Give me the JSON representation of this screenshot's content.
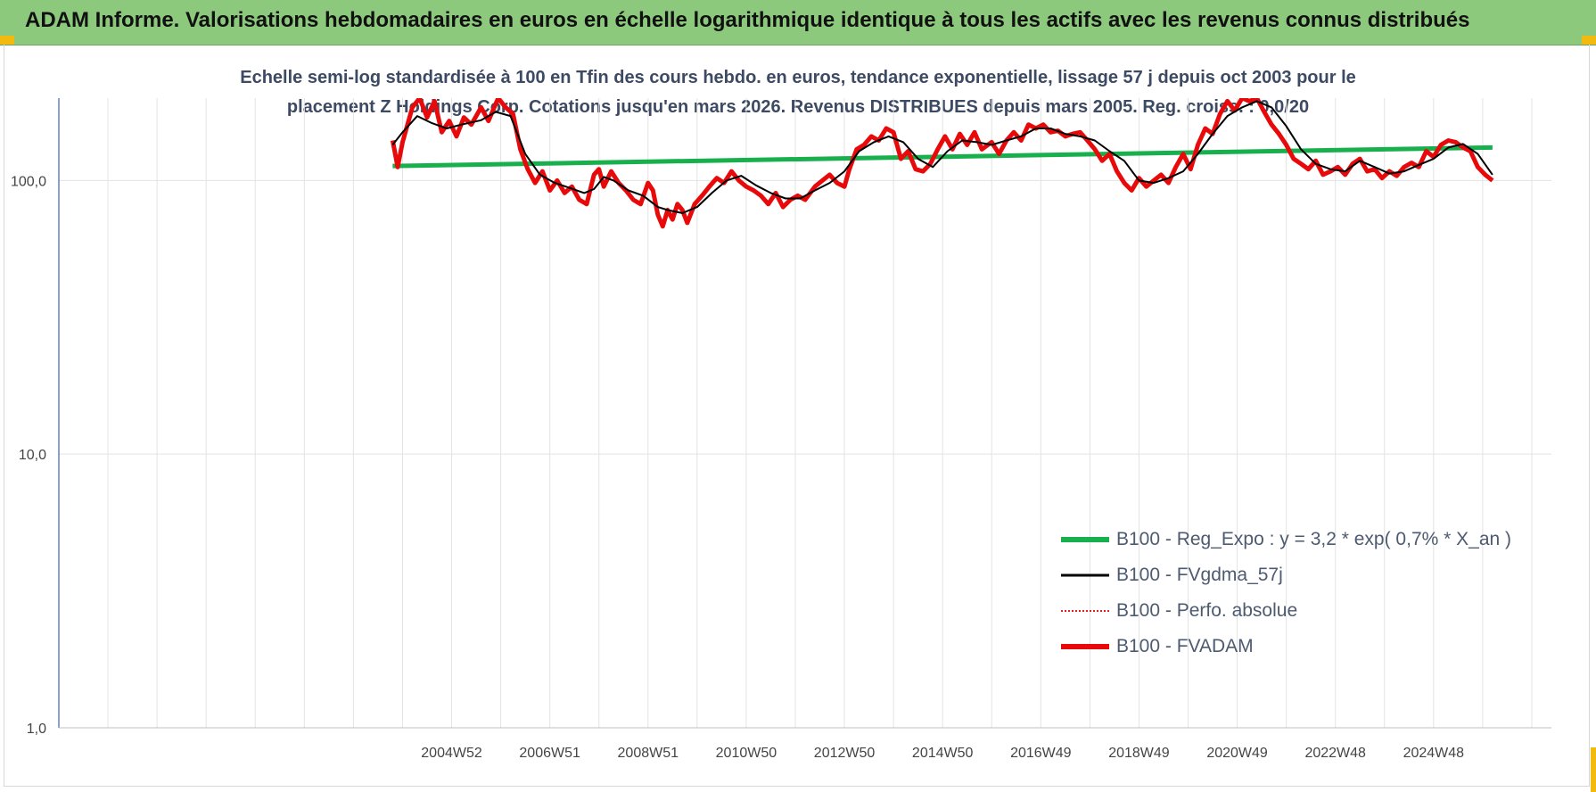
{
  "header": {
    "title": "ADAM Informe. Valorisations hebdomadaires en euros en échelle logarithmique identique à tous les actifs avec les revenus connus distribués"
  },
  "colors": {
    "header_bg": "#8cc97c",
    "corner_accent": "#f2b90f",
    "reg_expo": "#18b04c",
    "fvgdma": "#000000",
    "perfo": "#e02020",
    "fvadam": "#e80a0a",
    "grid": "#e3e3e3",
    "axis": "#3c64b4"
  },
  "chart_data": {
    "type": "line",
    "title_lines": [
      "Echelle semi-log standardisée à 100 en Tfin des cours hebdo. en euros, tendance exponentielle, lissage 57 j depuis oct 2003 pour le",
      "placement Z Holdings Corp. Cotations jusqu'en mars 2026. Revenus DISTRIBUES depuis mars 2005. Reg. croiss. : 0,0/20"
    ],
    "y_scale": "log",
    "ylim": [
      1,
      200
    ],
    "y_ticks": [
      1,
      10,
      100
    ],
    "y_tick_labels": [
      "1,0",
      "10,0",
      "100,0"
    ],
    "xlim": [
      1997.0,
      2027.4
    ],
    "x_tick_values": [
      2005.0,
      2007.0,
      2009.0,
      2011.0,
      2013.0,
      2015.0,
      2017.0,
      2019.0,
      2021.0,
      2023.0,
      2025.0
    ],
    "x_tick_labels": [
      "2004W52",
      "2006W51",
      "2008W51",
      "2010W50",
      "2012W50",
      "2014W50",
      "2016W49",
      "2018W49",
      "2020W49",
      "2022W48",
      "2024W48"
    ],
    "vertical_grid_years": [
      1998,
      1999,
      2000,
      2001,
      2002,
      2003,
      2004,
      2005,
      2006,
      2007,
      2008,
      2009,
      2010,
      2011,
      2012,
      2013,
      2014,
      2015,
      2016,
      2017,
      2018,
      2019,
      2020,
      2021,
      2022,
      2023,
      2024,
      2025,
      2026,
      2027
    ],
    "grid": true,
    "legend_position": "bottom-right",
    "series": [
      {
        "name": "B100 - Reg_Expo : y = 3,2 * exp( 0,7% *  X_an )",
        "color": "#18b04c",
        "style": "thick",
        "points": [
          [
            2003.8,
            113
          ],
          [
            2026.2,
            132
          ]
        ]
      },
      {
        "name": "B100 - FVgdma_57j",
        "color": "#000000",
        "style": "thin",
        "points": [
          [
            2003.8,
            135
          ],
          [
            2004.0,
            150
          ],
          [
            2004.3,
            172
          ],
          [
            2004.6,
            162
          ],
          [
            2004.9,
            155
          ],
          [
            2005.2,
            160
          ],
          [
            2005.6,
            166
          ],
          [
            2005.9,
            178
          ],
          [
            2006.2,
            172
          ],
          [
            2006.5,
            125
          ],
          [
            2006.8,
            105
          ],
          [
            2007.1,
            98
          ],
          [
            2007.4,
            94
          ],
          [
            2007.7,
            90
          ],
          [
            2007.9,
            93
          ],
          [
            2008.1,
            103
          ],
          [
            2008.3,
            100
          ],
          [
            2008.6,
            92
          ],
          [
            2008.9,
            88
          ],
          [
            2009.2,
            80
          ],
          [
            2009.4,
            78
          ],
          [
            2009.7,
            76
          ],
          [
            2010.0,
            80
          ],
          [
            2010.3,
            90
          ],
          [
            2010.6,
            100
          ],
          [
            2010.9,
            104
          ],
          [
            2011.2,
            96
          ],
          [
            2011.5,
            90
          ],
          [
            2011.8,
            86
          ],
          [
            2012.1,
            86
          ],
          [
            2012.4,
            92
          ],
          [
            2012.7,
            98
          ],
          [
            2013.0,
            108
          ],
          [
            2013.3,
            128
          ],
          [
            2013.6,
            138
          ],
          [
            2013.9,
            145
          ],
          [
            2014.2,
            138
          ],
          [
            2014.5,
            120
          ],
          [
            2014.8,
            112
          ],
          [
            2015.1,
            128
          ],
          [
            2015.4,
            140
          ],
          [
            2015.7,
            138
          ],
          [
            2016.0,
            135
          ],
          [
            2016.3,
            140
          ],
          [
            2016.6,
            145
          ],
          [
            2016.9,
            155
          ],
          [
            2017.2,
            155
          ],
          [
            2017.5,
            148
          ],
          [
            2017.8,
            145
          ],
          [
            2018.1,
            140
          ],
          [
            2018.4,
            128
          ],
          [
            2018.7,
            118
          ],
          [
            2019.0,
            100
          ],
          [
            2019.3,
            98
          ],
          [
            2019.6,
            102
          ],
          [
            2019.9,
            108
          ],
          [
            2020.2,
            125
          ],
          [
            2020.5,
            148
          ],
          [
            2020.8,
            172
          ],
          [
            2021.1,
            185
          ],
          [
            2021.4,
            195
          ],
          [
            2021.7,
            185
          ],
          [
            2022.0,
            158
          ],
          [
            2022.3,
            130
          ],
          [
            2022.6,
            115
          ],
          [
            2022.9,
            110
          ],
          [
            2023.2,
            108
          ],
          [
            2023.5,
            118
          ],
          [
            2023.8,
            112
          ],
          [
            2024.1,
            106
          ],
          [
            2024.4,
            108
          ],
          [
            2024.7,
            114
          ],
          [
            2025.0,
            120
          ],
          [
            2025.3,
            132
          ],
          [
            2025.6,
            136
          ],
          [
            2025.9,
            125
          ],
          [
            2026.2,
            105
          ]
        ]
      },
      {
        "name": "B100 - Perfo. absolue",
        "color": "#e02020",
        "style": "dotted",
        "points": []
      },
      {
        "name": "B100 - FVADAM",
        "color": "#e80a0a",
        "style": "thick",
        "points": [
          [
            2003.8,
            140
          ],
          [
            2003.9,
            112
          ],
          [
            2004.0,
            138
          ],
          [
            2004.2,
            185
          ],
          [
            2004.35,
            200
          ],
          [
            2004.5,
            170
          ],
          [
            2004.65,
            195
          ],
          [
            2004.8,
            150
          ],
          [
            2004.95,
            165
          ],
          [
            2005.1,
            145
          ],
          [
            2005.25,
            170
          ],
          [
            2005.4,
            160
          ],
          [
            2005.6,
            185
          ],
          [
            2005.75,
            165
          ],
          [
            2005.95,
            200
          ],
          [
            2006.1,
            185
          ],
          [
            2006.25,
            175
          ],
          [
            2006.4,
            130
          ],
          [
            2006.55,
            110
          ],
          [
            2006.7,
            98
          ],
          [
            2006.85,
            108
          ],
          [
            2007.0,
            92
          ],
          [
            2007.15,
            100
          ],
          [
            2007.3,
            90
          ],
          [
            2007.45,
            95
          ],
          [
            2007.6,
            85
          ],
          [
            2007.75,
            82
          ],
          [
            2007.9,
            105
          ],
          [
            2008.0,
            110
          ],
          [
            2008.1,
            95
          ],
          [
            2008.25,
            108
          ],
          [
            2008.4,
            98
          ],
          [
            2008.55,
            92
          ],
          [
            2008.7,
            85
          ],
          [
            2008.85,
            82
          ],
          [
            2009.0,
            98
          ],
          [
            2009.1,
            92
          ],
          [
            2009.2,
            75
          ],
          [
            2009.3,
            68
          ],
          [
            2009.4,
            78
          ],
          [
            2009.5,
            72
          ],
          [
            2009.6,
            82
          ],
          [
            2009.7,
            78
          ],
          [
            2009.8,
            70
          ],
          [
            2009.95,
            82
          ],
          [
            2010.1,
            88
          ],
          [
            2010.25,
            95
          ],
          [
            2010.4,
            102
          ],
          [
            2010.55,
            98
          ],
          [
            2010.7,
            108
          ],
          [
            2010.85,
            100
          ],
          [
            2011.0,
            95
          ],
          [
            2011.15,
            92
          ],
          [
            2011.3,
            88
          ],
          [
            2011.45,
            82
          ],
          [
            2011.6,
            90
          ],
          [
            2011.75,
            80
          ],
          [
            2011.9,
            85
          ],
          [
            2012.05,
            88
          ],
          [
            2012.2,
            85
          ],
          [
            2012.4,
            95
          ],
          [
            2012.55,
            100
          ],
          [
            2012.7,
            105
          ],
          [
            2012.85,
            98
          ],
          [
            2013.0,
            95
          ],
          [
            2013.1,
            110
          ],
          [
            2013.25,
            130
          ],
          [
            2013.4,
            135
          ],
          [
            2013.55,
            145
          ],
          [
            2013.7,
            140
          ],
          [
            2013.85,
            155
          ],
          [
            2014.0,
            150
          ],
          [
            2014.15,
            120
          ],
          [
            2014.3,
            128
          ],
          [
            2014.45,
            110
          ],
          [
            2014.6,
            108
          ],
          [
            2014.75,
            115
          ],
          [
            2014.9,
            130
          ],
          [
            2015.05,
            145
          ],
          [
            2015.2,
            130
          ],
          [
            2015.35,
            148
          ],
          [
            2015.5,
            135
          ],
          [
            2015.65,
            150
          ],
          [
            2015.8,
            130
          ],
          [
            2016.0,
            138
          ],
          [
            2016.15,
            125
          ],
          [
            2016.3,
            140
          ],
          [
            2016.45,
            150
          ],
          [
            2016.6,
            140
          ],
          [
            2016.75,
            160
          ],
          [
            2016.9,
            155
          ],
          [
            2017.05,
            160
          ],
          [
            2017.2,
            150
          ],
          [
            2017.35,
            152
          ],
          [
            2017.5,
            145
          ],
          [
            2017.65,
            148
          ],
          [
            2017.8,
            150
          ],
          [
            2017.95,
            140
          ],
          [
            2018.1,
            130
          ],
          [
            2018.25,
            118
          ],
          [
            2018.4,
            125
          ],
          [
            2018.55,
            108
          ],
          [
            2018.7,
            98
          ],
          [
            2018.85,
            92
          ],
          [
            2019.0,
            102
          ],
          [
            2019.15,
            95
          ],
          [
            2019.3,
            100
          ],
          [
            2019.45,
            105
          ],
          [
            2019.6,
            98
          ],
          [
            2019.75,
            112
          ],
          [
            2019.9,
            125
          ],
          [
            2020.05,
            110
          ],
          [
            2020.2,
            135
          ],
          [
            2020.35,
            155
          ],
          [
            2020.5,
            148
          ],
          [
            2020.65,
            175
          ],
          [
            2020.8,
            195
          ],
          [
            2020.95,
            180
          ],
          [
            2021.1,
            200
          ],
          [
            2021.25,
            195
          ],
          [
            2021.4,
            200
          ],
          [
            2021.55,
            178
          ],
          [
            2021.7,
            160
          ],
          [
            2021.85,
            148
          ],
          [
            2022.0,
            135
          ],
          [
            2022.15,
            120
          ],
          [
            2022.3,
            115
          ],
          [
            2022.45,
            110
          ],
          [
            2022.6,
            118
          ],
          [
            2022.75,
            105
          ],
          [
            2022.9,
            108
          ],
          [
            2023.05,
            112
          ],
          [
            2023.2,
            105
          ],
          [
            2023.35,
            115
          ],
          [
            2023.5,
            120
          ],
          [
            2023.65,
            108
          ],
          [
            2023.8,
            110
          ],
          [
            2023.95,
            102
          ],
          [
            2024.1,
            108
          ],
          [
            2024.25,
            104
          ],
          [
            2024.4,
            112
          ],
          [
            2024.55,
            116
          ],
          [
            2024.7,
            112
          ],
          [
            2024.85,
            128
          ],
          [
            2025.0,
            122
          ],
          [
            2025.15,
            135
          ],
          [
            2025.3,
            140
          ],
          [
            2025.45,
            138
          ],
          [
            2025.6,
            132
          ],
          [
            2025.75,
            128
          ],
          [
            2025.9,
            112
          ],
          [
            2026.05,
            105
          ],
          [
            2026.2,
            100
          ]
        ]
      }
    ]
  }
}
